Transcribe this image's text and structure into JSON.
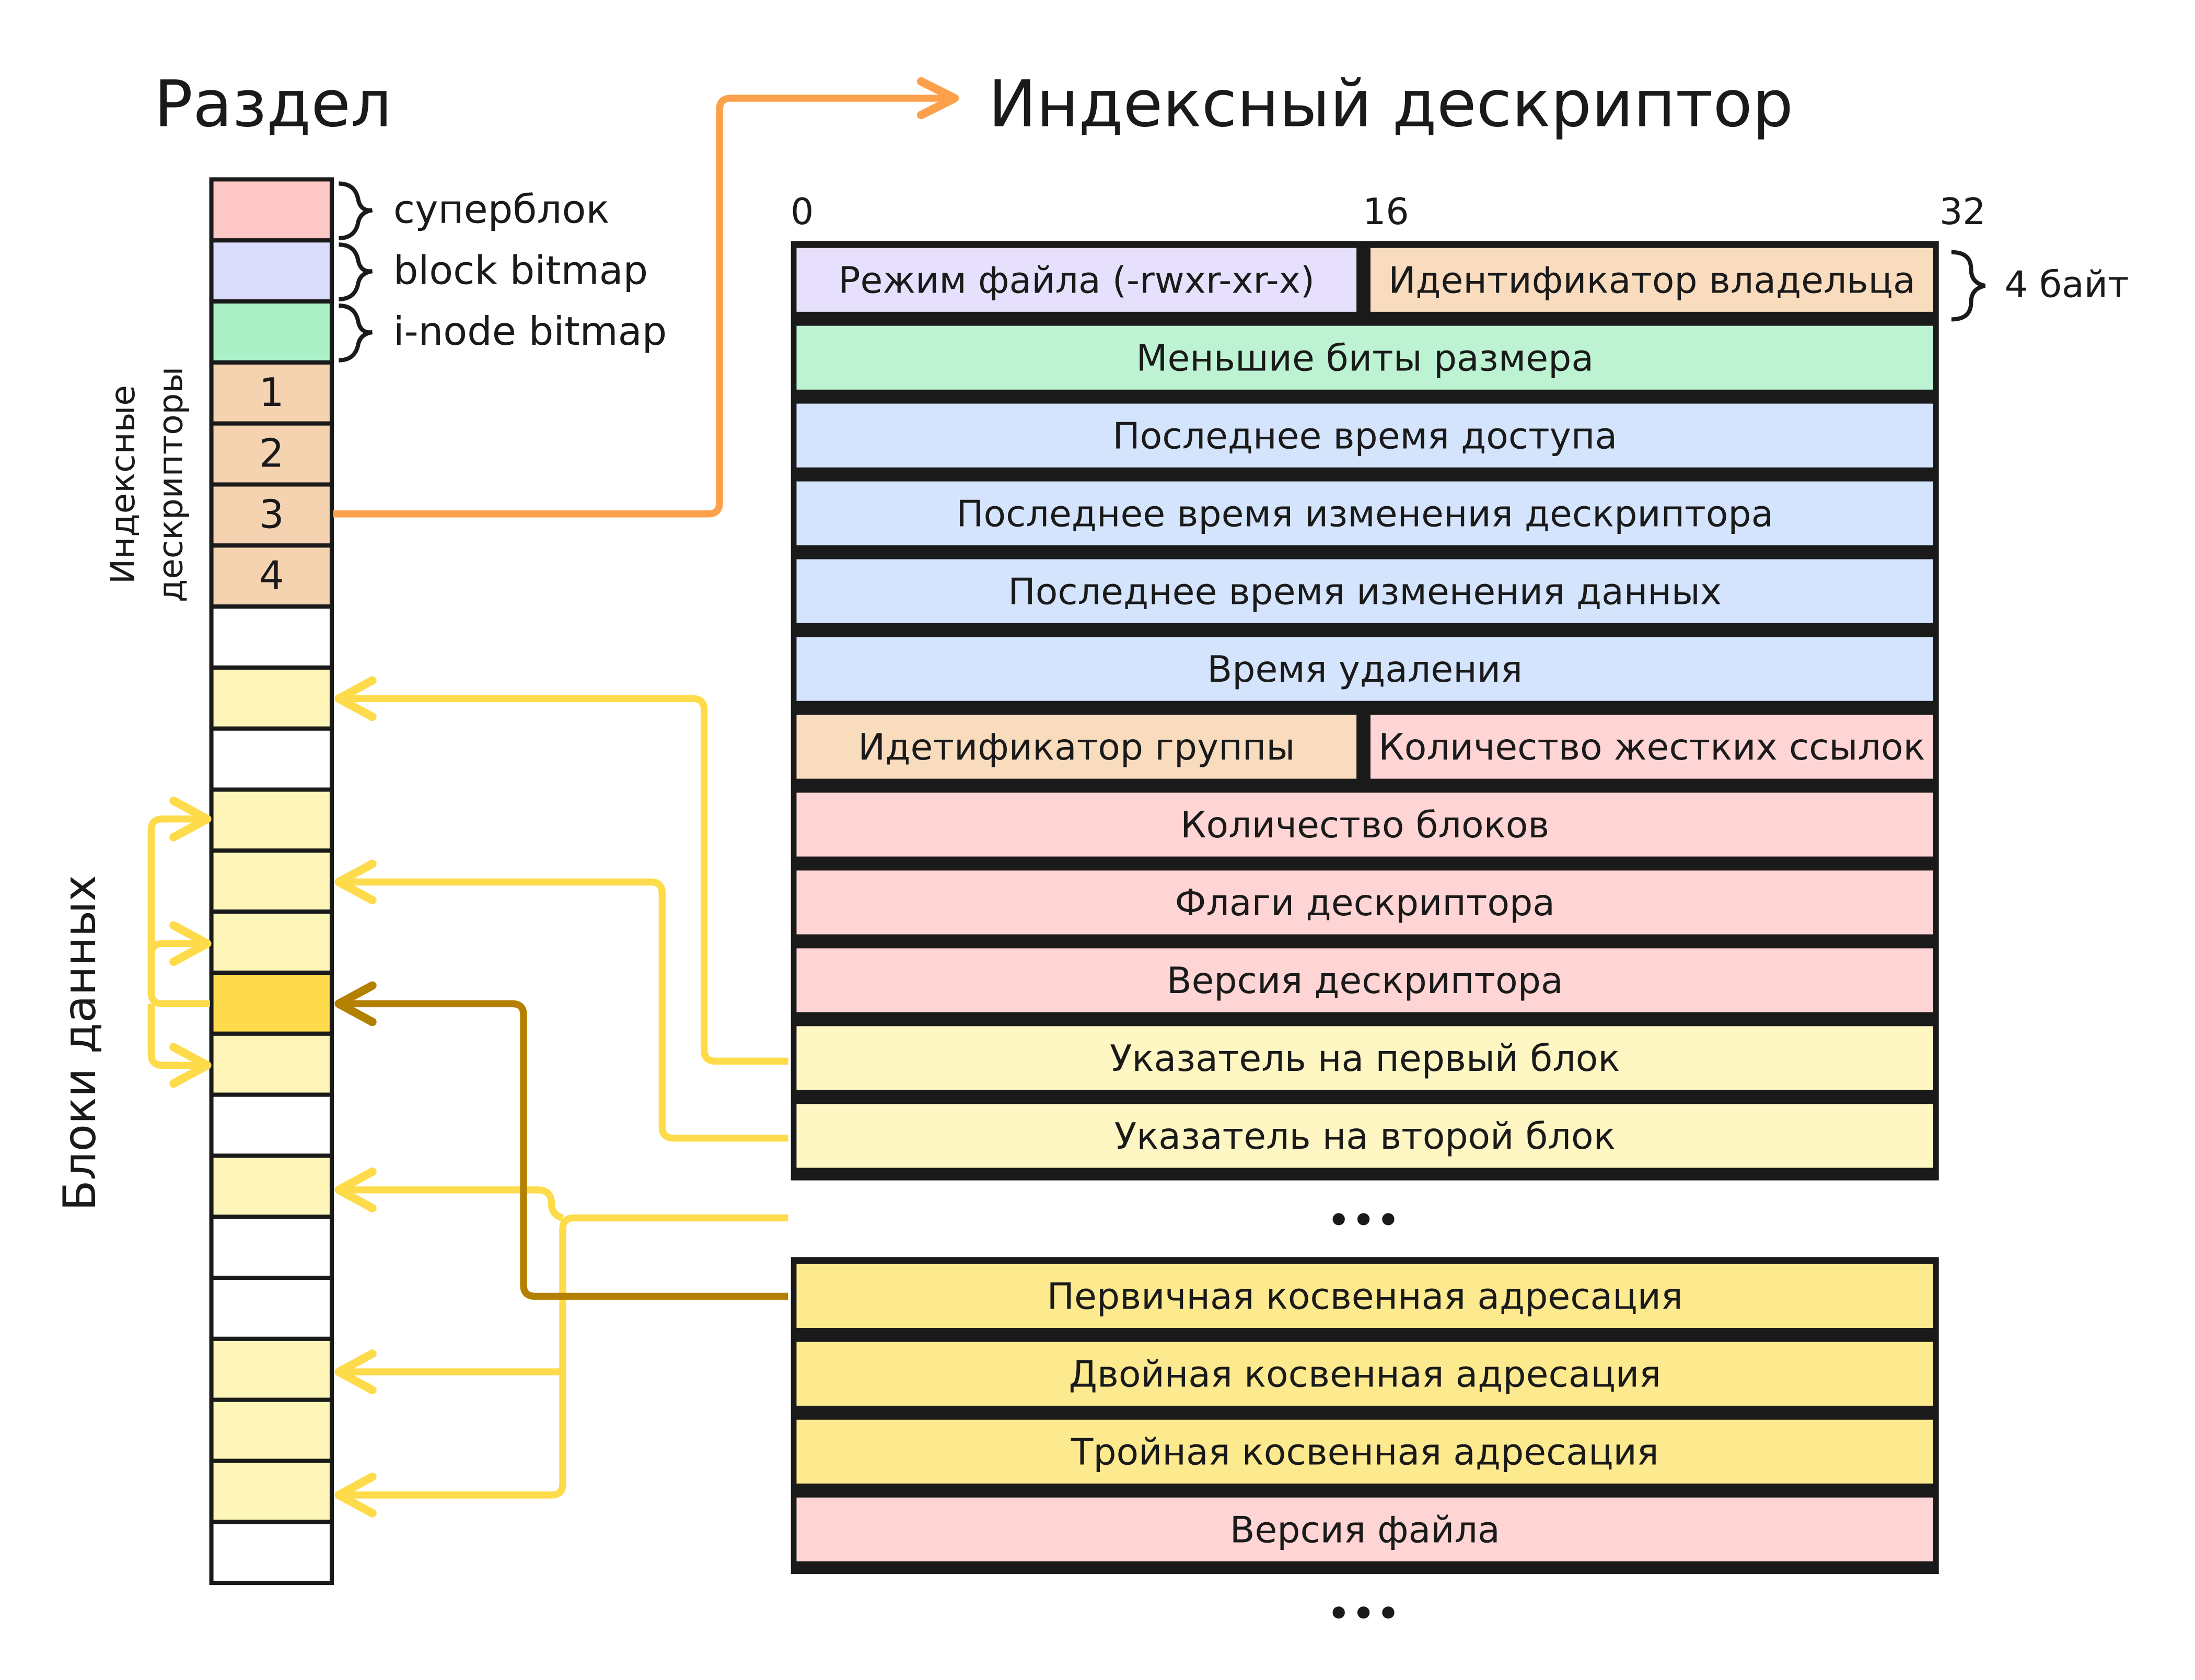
{
  "partition": {
    "title": "Раздел",
    "legend": [
      "суперблок",
      "block bitmap",
      "i-node bitmap"
    ],
    "inode_label_line1": "Индексные",
    "inode_label_line2": "дескрипторы",
    "data_blocks_label": "Блоки данных",
    "inode_numbers": [
      "1",
      "2",
      "3",
      "4"
    ],
    "cells": [
      "superblock",
      "block-bitmap",
      "inode-bitmap",
      "inode",
      "inode",
      "inode",
      "inode",
      "empty",
      "data",
      "empty",
      "data",
      "data",
      "data",
      "indirect",
      "data",
      "empty",
      "data",
      "empty",
      "empty",
      "data",
      "data",
      "data",
      "empty"
    ]
  },
  "inode": {
    "title": "Индексный дескриптор",
    "bit_labels": [
      "0",
      "16",
      "32"
    ],
    "size_note": "4 байт",
    "rows": [
      {
        "cells": [
          {
            "label": "Режим файла (-rwxr-xr-x)",
            "color": "#e6e0fc"
          },
          {
            "label": "Идентификатор владельца",
            "color": "#f9dcbe"
          }
        ]
      },
      {
        "cells": [
          {
            "label": "Меньшие биты размера",
            "color": "#bdf2d2"
          }
        ]
      },
      {
        "cells": [
          {
            "label": "Последнее время доступа",
            "color": "#d4e4fc"
          }
        ]
      },
      {
        "cells": [
          {
            "label": "Последнее время изменения дескриптора",
            "color": "#d4e4fc"
          }
        ]
      },
      {
        "cells": [
          {
            "label": "Последнее время изменения данных",
            "color": "#d4e4fc"
          }
        ]
      },
      {
        "cells": [
          {
            "label": "Время удаления",
            "color": "#d4e4fc"
          }
        ]
      },
      {
        "cells": [
          {
            "label": "Идетификатор группы",
            "color": "#f9dcbe"
          },
          {
            "label": "Количество жестких ссылок",
            "color": "#ffd4d4"
          }
        ]
      },
      {
        "cells": [
          {
            "label": "Количество блоков",
            "color": "#ffd4d4"
          }
        ]
      },
      {
        "cells": [
          {
            "label": "Флаги дескриптора",
            "color": "#ffd4d4"
          }
        ]
      },
      {
        "cells": [
          {
            "label": "Версия дескриптора",
            "color": "#ffd4d4"
          }
        ]
      },
      {
        "cells": [
          {
            "label": "Указатель на первый блок",
            "color": "#fef6c3"
          }
        ]
      },
      {
        "cells": [
          {
            "label": "Указатель на второй блок",
            "color": "#fef6c3"
          }
        ]
      }
    ],
    "ellipsis": "•••",
    "rows2": [
      {
        "cells": [
          {
            "label": "Первичная косвенная адресация",
            "color": "#fde98e"
          }
        ]
      },
      {
        "cells": [
          {
            "label": "Двойная косвенная адресация",
            "color": "#fde98e"
          }
        ]
      },
      {
        "cells": [
          {
            "label": "Тройная косвенная адресация",
            "color": "#fde98e"
          }
        ]
      },
      {
        "cells": [
          {
            "label": "Версия файла",
            "color": "#ffd4d4"
          }
        ]
      }
    ]
  },
  "colors": {
    "superblock": "#fec8c7",
    "block-bitmap": "#dcdcfc",
    "inode-bitmap": "#acf0c8",
    "inode": "#f6d3b0",
    "data": "#fef6b8",
    "indirect": "#fedb4a",
    "empty": "#ffffff",
    "arrow_orange": "#fda04c",
    "arrow_yellow": "#fedb4a",
    "arrow_dark": "#b38000"
  }
}
